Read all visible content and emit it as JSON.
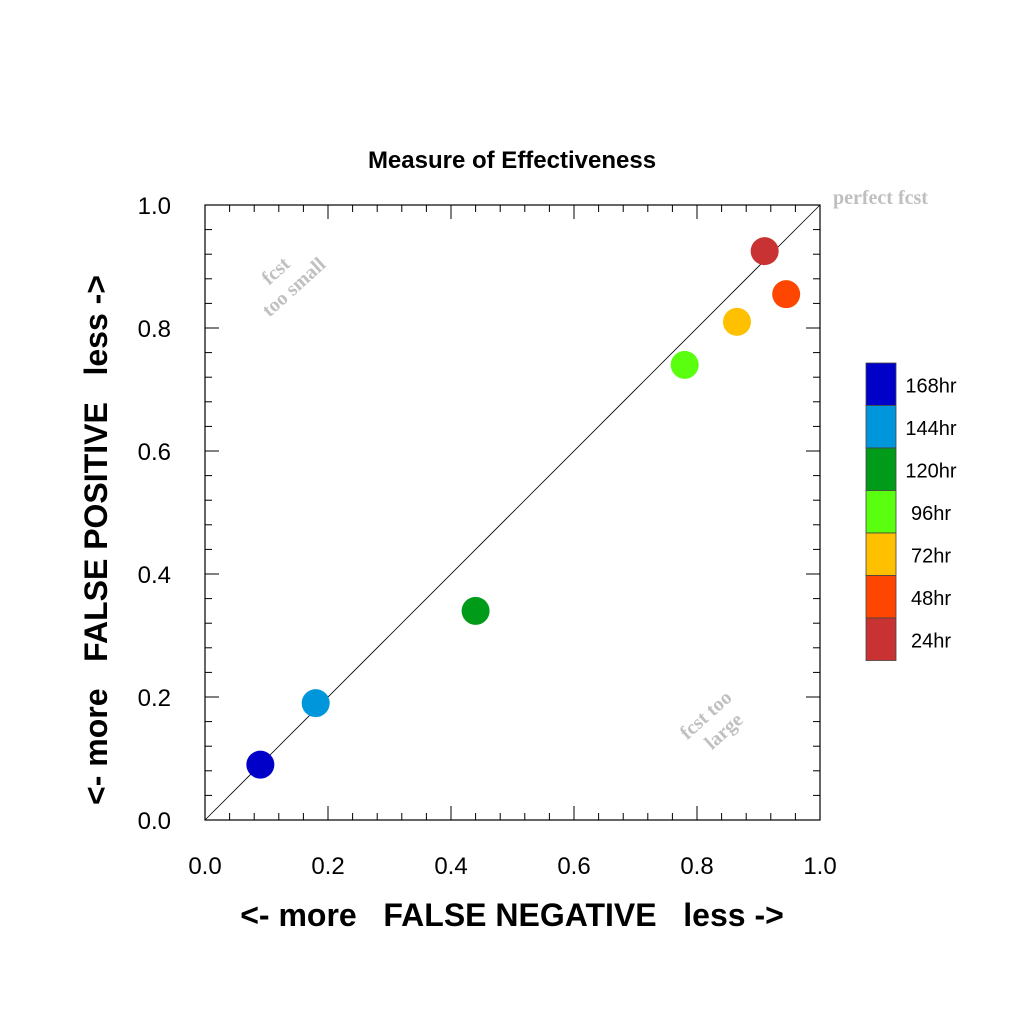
{
  "chart_data": {
    "type": "scatter",
    "title": "Measure of Effectiveness",
    "xlabel": "<- more   FALSE NEGATIVE   less ->",
    "ylabel": "<- more   FALSE POSITIVE   less ->",
    "xlim": [
      0.0,
      1.0
    ],
    "ylim": [
      0.0,
      1.0
    ],
    "x_ticks": [
      "0.0",
      "0.2",
      "0.4",
      "0.6",
      "0.8",
      "1.0"
    ],
    "y_ticks": [
      "0.0",
      "0.2",
      "0.4",
      "0.6",
      "0.8",
      "1.0"
    ],
    "grid": false,
    "reference_line": {
      "label": "perfect fcst",
      "from": [
        0,
        0
      ],
      "to": [
        1,
        1
      ]
    },
    "annotations": [
      {
        "lines": [
          "fcst",
          "too small"
        ],
        "region": "upper-left"
      },
      {
        "lines": [
          "fcst too",
          "large"
        ],
        "region": "lower-right"
      }
    ],
    "legend_placement": "right",
    "points": [
      {
        "label": "168hr",
        "x": 0.09,
        "y": 0.09,
        "color": "#0000c8"
      },
      {
        "label": "144hr",
        "x": 0.18,
        "y": 0.19,
        "color": "#0096dc"
      },
      {
        "label": "120hr",
        "x": 0.44,
        "y": 0.34,
        "color": "#009b19"
      },
      {
        "label": "96hr",
        "x": 0.78,
        "y": 0.74,
        "color": "#5aff0f"
      },
      {
        "label": "72hr",
        "x": 0.865,
        "y": 0.81,
        "color": "#ffc000"
      },
      {
        "label": "48hr",
        "x": 0.945,
        "y": 0.855,
        "color": "#ff4600"
      },
      {
        "label": "24hr",
        "x": 0.91,
        "y": 0.925,
        "color": "#c83232"
      }
    ]
  }
}
